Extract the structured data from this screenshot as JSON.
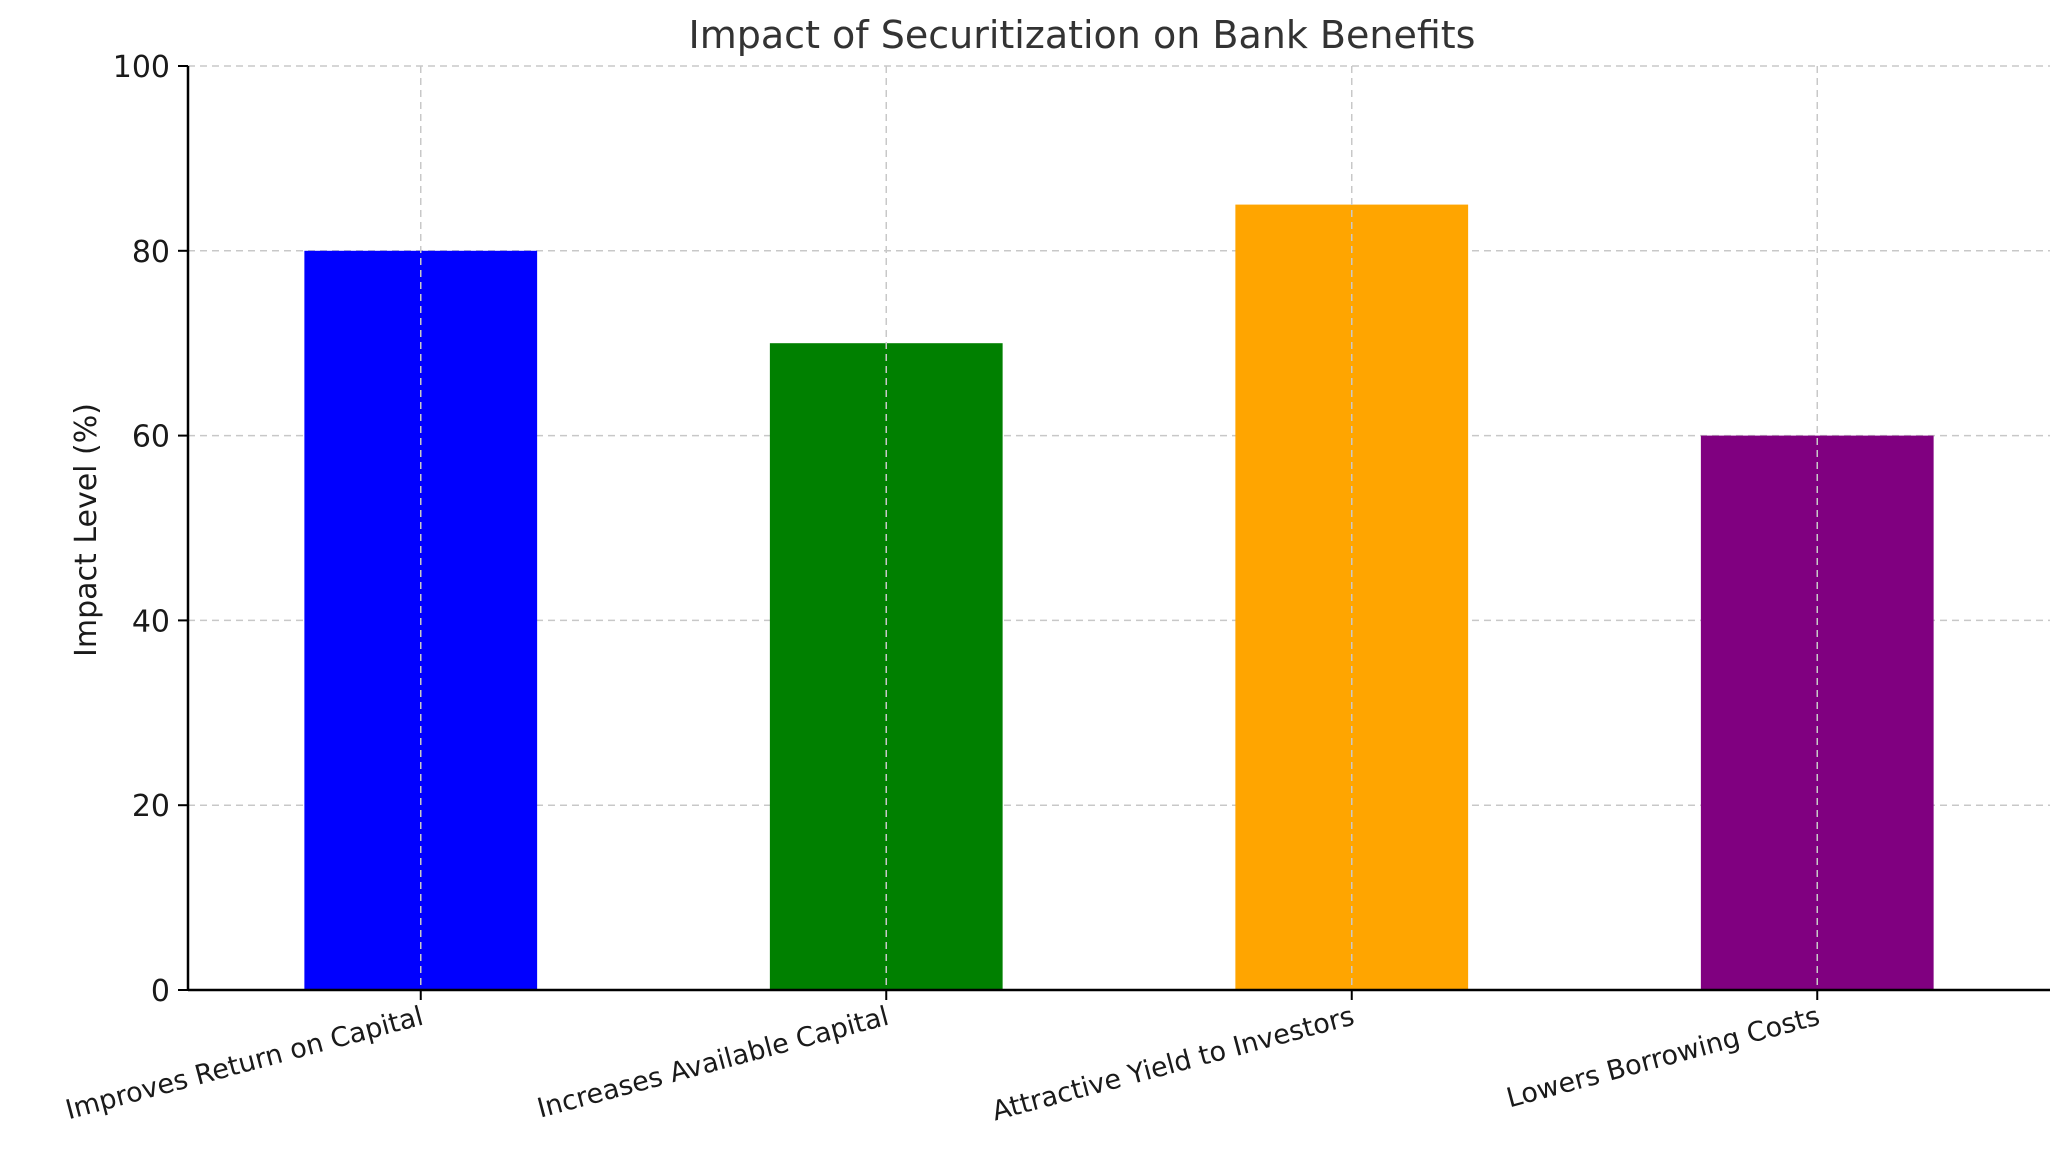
{
  "chart_data": {
    "type": "bar",
    "title": "Impact of Securitization on Bank Benefits",
    "xlabel": "",
    "ylabel": "Impact Level (%)",
    "categories": [
      "Improves Return on Capital",
      "Increases Available Capital",
      "Attractive Yield to Investors",
      "Lowers Borrowing Costs"
    ],
    "values": [
      80,
      70,
      85,
      60
    ],
    "colors": [
      "#0000ff",
      "#008000",
      "#ffa500",
      "#800080"
    ],
    "ylim": [
      0,
      100
    ],
    "yticks": [
      0,
      20,
      40,
      60,
      80,
      100
    ],
    "grid": true,
    "legend": "none"
  }
}
